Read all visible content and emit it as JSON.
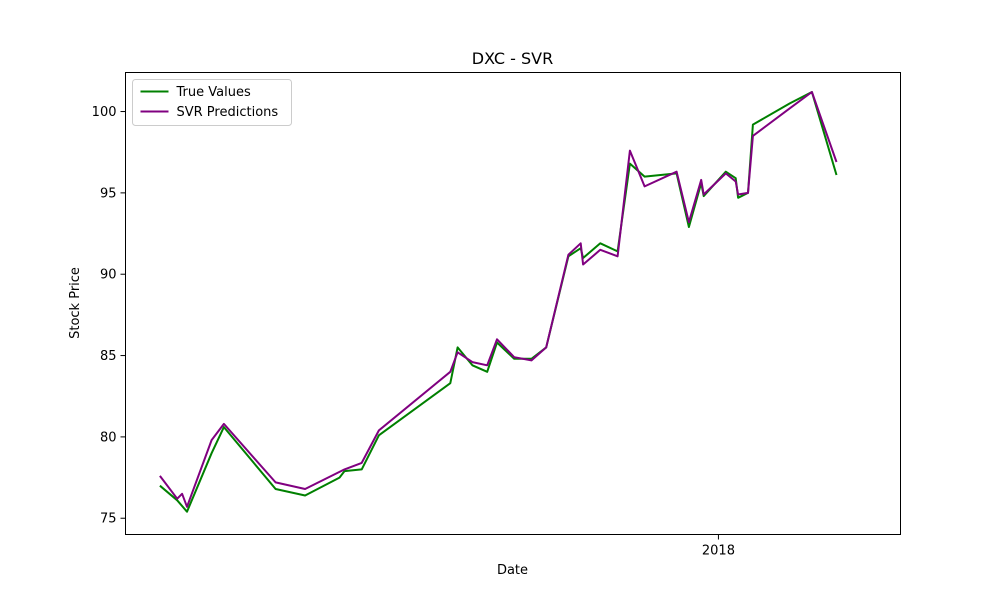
{
  "chart_data": {
    "type": "line",
    "title": "DXC - SVR",
    "xlabel": "Date",
    "ylabel": "Stock Price",
    "x_tick_labels": [
      {
        "label": "2018",
        "value": "2018-01-01"
      }
    ],
    "y_ticks": [
      75,
      80,
      85,
      90,
      95,
      100
    ],
    "ylim": [
      74.0,
      102.4
    ],
    "xlim": [
      "2017-05-05",
      "2018-03-16"
    ],
    "grid": false,
    "legend": "top-left",
    "series": [
      {
        "name": "True Values",
        "color": "#008000",
        "points": [
          [
            "2017-05-19",
            77.0
          ],
          [
            "2017-05-26",
            76.1
          ],
          [
            "2017-05-30",
            75.4
          ],
          [
            "2017-06-09",
            79.0
          ],
          [
            "2017-06-14",
            80.6
          ],
          [
            "2017-07-05",
            76.8
          ],
          [
            "2017-07-17",
            76.4
          ],
          [
            "2017-07-31",
            77.5
          ],
          [
            "2017-08-02",
            77.9
          ],
          [
            "2017-08-09",
            78.0
          ],
          [
            "2017-08-16",
            80.1
          ],
          [
            "2017-09-14",
            83.3
          ],
          [
            "2017-09-17",
            85.5
          ],
          [
            "2017-09-23",
            84.4
          ],
          [
            "2017-09-29",
            84.0
          ],
          [
            "2017-10-03",
            85.8
          ],
          [
            "2017-10-10",
            84.8
          ],
          [
            "2017-10-17",
            84.8
          ],
          [
            "2017-10-23",
            85.5
          ],
          [
            "2017-11-01",
            91.1
          ],
          [
            "2017-11-06",
            91.6
          ],
          [
            "2017-11-07",
            91.0
          ],
          [
            "2017-11-14",
            91.9
          ],
          [
            "2017-11-21",
            91.4
          ],
          [
            "2017-11-26",
            96.8
          ],
          [
            "2017-12-02",
            96.0
          ],
          [
            "2017-12-15",
            96.2
          ],
          [
            "2017-12-20",
            92.9
          ],
          [
            "2017-12-25",
            95.6
          ],
          [
            "2017-12-26",
            94.8
          ],
          [
            "2018-01-04",
            96.3
          ],
          [
            "2018-01-08",
            95.9
          ],
          [
            "2018-01-09",
            94.7
          ],
          [
            "2018-01-13",
            95.0
          ],
          [
            "2018-01-15",
            99.2
          ],
          [
            "2018-01-30",
            100.5
          ],
          [
            "2018-02-08",
            101.2
          ],
          [
            "2018-02-18",
            96.1
          ]
        ]
      },
      {
        "name": "SVR Predictions",
        "color": "#800080",
        "points": [
          [
            "2017-05-19",
            77.6
          ],
          [
            "2017-05-26",
            76.2
          ],
          [
            "2017-05-28",
            76.5
          ],
          [
            "2017-05-30",
            75.7
          ],
          [
            "2017-06-09",
            79.8
          ],
          [
            "2017-06-14",
            80.8
          ],
          [
            "2017-07-05",
            77.2
          ],
          [
            "2017-07-17",
            76.8
          ],
          [
            "2017-08-02",
            78.0
          ],
          [
            "2017-08-09",
            78.4
          ],
          [
            "2017-08-16",
            80.4
          ],
          [
            "2017-09-14",
            84.0
          ],
          [
            "2017-09-17",
            85.2
          ],
          [
            "2017-09-23",
            84.6
          ],
          [
            "2017-09-29",
            84.4
          ],
          [
            "2017-10-03",
            86.0
          ],
          [
            "2017-10-10",
            84.9
          ],
          [
            "2017-10-17",
            84.7
          ],
          [
            "2017-10-23",
            85.5
          ],
          [
            "2017-11-01",
            91.2
          ],
          [
            "2017-11-06",
            91.9
          ],
          [
            "2017-11-07",
            90.6
          ],
          [
            "2017-11-14",
            91.5
          ],
          [
            "2017-11-21",
            91.1
          ],
          [
            "2017-11-26",
            97.6
          ],
          [
            "2017-12-02",
            95.4
          ],
          [
            "2017-12-15",
            96.3
          ],
          [
            "2017-12-20",
            93.2
          ],
          [
            "2017-12-25",
            95.8
          ],
          [
            "2017-12-26",
            94.9
          ],
          [
            "2018-01-04",
            96.2
          ],
          [
            "2018-01-08",
            95.7
          ],
          [
            "2018-01-09",
            94.9
          ],
          [
            "2018-01-13",
            95.0
          ],
          [
            "2018-01-15",
            98.5
          ],
          [
            "2018-01-30",
            100.2
          ],
          [
            "2018-02-08",
            101.2
          ],
          [
            "2018-02-18",
            96.9
          ]
        ]
      }
    ]
  }
}
